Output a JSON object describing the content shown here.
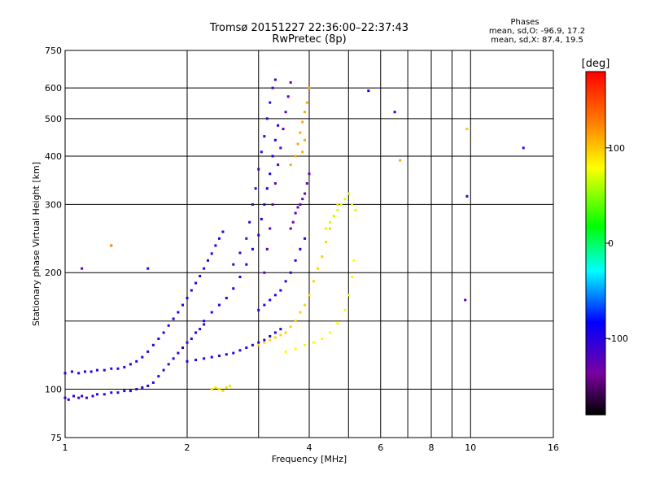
{
  "header": {
    "title_line1": "Tromsø 20151227 22:36:00–22:37:43",
    "title_line2": "RwPretec (8p)",
    "stats_title": "Phases",
    "stats_o": "mean, sd,O: -96.9, 17.2",
    "stats_x": "mean, sd,X:  87.4, 19.5"
  },
  "chart_data": {
    "type": "scatter",
    "xlabel": "Frequency [MHz]",
    "ylabel": "Stationary phase Virtual Height [km]",
    "x_scale": "log",
    "y_scale": "log",
    "xlim": [
      1,
      16
    ],
    "ylim": [
      75,
      750
    ],
    "x_ticks": [
      1,
      2,
      4,
      6,
      8,
      10,
      16
    ],
    "x_minor_ticks": [
      3,
      5,
      7,
      9
    ],
    "y_ticks": [
      75,
      100,
      200,
      300,
      400,
      500,
      600,
      750
    ],
    "y_minor_ticks": [
      150
    ],
    "grid": true,
    "colorbar": {
      "label": "[deg]",
      "range": [
        -180,
        180
      ],
      "ticks": [
        100,
        0,
        -100
      ]
    },
    "series": [
      {
        "phase": -105,
        "points": [
          [
            1.0,
            95
          ],
          [
            1.02,
            94
          ],
          [
            1.05,
            96
          ],
          [
            1.08,
            95
          ],
          [
            1.1,
            96
          ],
          [
            1.13,
            95
          ],
          [
            1.17,
            96
          ],
          [
            1.2,
            97
          ],
          [
            1.25,
            97
          ],
          [
            1.3,
            98
          ],
          [
            1.35,
            98
          ],
          [
            1.4,
            99
          ],
          [
            1.45,
            99
          ],
          [
            1.5,
            100
          ],
          [
            1.55,
            101
          ],
          [
            1.6,
            102
          ],
          [
            1.65,
            104
          ],
          [
            1.7,
            108
          ],
          [
            1.75,
            112
          ],
          [
            1.8,
            116
          ],
          [
            1.85,
            120
          ],
          [
            1.9,
            124
          ],
          [
            1.95,
            128
          ],
          [
            2.0,
            132
          ],
          [
            2.05,
            135
          ],
          [
            2.1,
            140
          ],
          [
            2.15,
            143
          ],
          [
            2.2,
            147
          ]
        ]
      },
      {
        "phase": -100,
        "points": [
          [
            1.0,
            110
          ],
          [
            1.04,
            111
          ],
          [
            1.08,
            110
          ],
          [
            1.12,
            111
          ],
          [
            1.16,
            111
          ],
          [
            1.2,
            112
          ],
          [
            1.25,
            112
          ],
          [
            1.3,
            113
          ],
          [
            1.35,
            113
          ],
          [
            1.4,
            114
          ],
          [
            1.45,
            116
          ],
          [
            1.5,
            118
          ],
          [
            1.55,
            121
          ],
          [
            1.6,
            125
          ],
          [
            1.65,
            130
          ],
          [
            1.7,
            135
          ],
          [
            1.75,
            140
          ],
          [
            1.8,
            146
          ],
          [
            1.85,
            152
          ],
          [
            1.9,
            158
          ],
          [
            1.95,
            165
          ],
          [
            2.0,
            172
          ],
          [
            2.05,
            180
          ],
          [
            2.1,
            188
          ],
          [
            2.15,
            196
          ],
          [
            2.2,
            205
          ],
          [
            2.25,
            215
          ],
          [
            2.3,
            224
          ],
          [
            2.35,
            235
          ],
          [
            2.4,
            245
          ],
          [
            2.45,
            255
          ]
        ]
      },
      {
        "phase": -100,
        "points": [
          [
            2.0,
            118
          ],
          [
            2.1,
            119
          ],
          [
            2.2,
            120
          ],
          [
            2.3,
            121
          ],
          [
            2.4,
            122
          ],
          [
            2.5,
            123
          ],
          [
            2.6,
            124
          ],
          [
            2.7,
            126
          ],
          [
            2.8,
            128
          ],
          [
            2.9,
            130
          ],
          [
            3.0,
            132
          ],
          [
            3.1,
            134
          ],
          [
            3.2,
            137
          ],
          [
            3.3,
            140
          ],
          [
            3.4,
            143
          ]
        ]
      },
      {
        "phase": -95,
        "points": [
          [
            2.2,
            150
          ],
          [
            2.3,
            158
          ],
          [
            2.4,
            165
          ],
          [
            2.5,
            172
          ],
          [
            2.6,
            182
          ],
          [
            2.7,
            195
          ],
          [
            2.8,
            210
          ],
          [
            2.9,
            230
          ],
          [
            3.0,
            250
          ],
          [
            3.05,
            275
          ],
          [
            3.1,
            300
          ],
          [
            3.15,
            330
          ],
          [
            3.2,
            360
          ],
          [
            3.25,
            400
          ],
          [
            3.3,
            440
          ],
          [
            3.35,
            480
          ]
        ]
      },
      {
        "phase": -110,
        "points": [
          [
            2.6,
            210
          ],
          [
            2.7,
            225
          ],
          [
            2.8,
            245
          ],
          [
            2.85,
            270
          ],
          [
            2.9,
            300
          ],
          [
            2.95,
            330
          ],
          [
            3.0,
            370
          ],
          [
            3.05,
            410
          ],
          [
            3.1,
            450
          ],
          [
            3.15,
            500
          ],
          [
            3.2,
            550
          ],
          [
            3.25,
            600
          ],
          [
            3.3,
            630
          ]
        ]
      },
      {
        "phase": -125,
        "points": [
          [
            3.1,
            200
          ],
          [
            3.15,
            230
          ],
          [
            3.2,
            260
          ],
          [
            3.25,
            300
          ],
          [
            3.3,
            340
          ],
          [
            3.35,
            380
          ],
          [
            3.4,
            420
          ],
          [
            3.45,
            470
          ],
          [
            3.5,
            520
          ],
          [
            3.55,
            570
          ],
          [
            3.6,
            620
          ]
        ]
      },
      {
        "phase": -130,
        "points": [
          [
            3.6,
            260
          ],
          [
            3.65,
            270
          ],
          [
            3.7,
            285
          ],
          [
            3.75,
            295
          ],
          [
            3.8,
            300
          ],
          [
            3.85,
            310
          ],
          [
            3.9,
            320
          ],
          [
            3.95,
            340
          ],
          [
            4.0,
            360
          ]
        ]
      },
      {
        "phase": -100,
        "points": [
          [
            3.0,
            160
          ],
          [
            3.1,
            165
          ],
          [
            3.2,
            170
          ],
          [
            3.3,
            175
          ],
          [
            3.4,
            180
          ],
          [
            3.5,
            190
          ],
          [
            3.6,
            200
          ],
          [
            3.7,
            215
          ],
          [
            3.8,
            230
          ],
          [
            3.9,
            245
          ]
        ]
      },
      {
        "phase": 95,
        "points": [
          [
            3.0,
            130
          ],
          [
            3.1,
            132
          ],
          [
            3.2,
            134
          ],
          [
            3.3,
            136
          ],
          [
            3.4,
            138
          ],
          [
            3.5,
            140
          ],
          [
            3.6,
            145
          ],
          [
            3.7,
            150
          ],
          [
            3.8,
            158
          ],
          [
            3.9,
            165
          ],
          [
            4.0,
            175
          ],
          [
            4.1,
            190
          ],
          [
            4.2,
            205
          ],
          [
            4.3,
            220
          ],
          [
            4.4,
            240
          ],
          [
            4.5,
            260
          ],
          [
            4.6,
            280
          ],
          [
            4.7,
            300
          ]
        ]
      },
      {
        "phase": 80,
        "points": [
          [
            3.5,
            125
          ],
          [
            3.7,
            127
          ],
          [
            3.9,
            130
          ],
          [
            4.1,
            132
          ],
          [
            4.3,
            135
          ],
          [
            4.5,
            140
          ],
          [
            4.7,
            148
          ],
          [
            4.9,
            160
          ],
          [
            5.0,
            175
          ],
          [
            5.1,
            195
          ],
          [
            5.15,
            215
          ]
        ]
      },
      {
        "phase": 110,
        "points": [
          [
            3.6,
            380
          ],
          [
            3.7,
            400
          ],
          [
            3.75,
            430
          ],
          [
            3.8,
            460
          ],
          [
            3.85,
            490
          ],
          [
            3.9,
            520
          ],
          [
            3.95,
            550
          ],
          [
            4.0,
            600
          ],
          [
            3.85,
            410
          ],
          [
            3.9,
            440
          ]
        ]
      },
      {
        "phase": 70,
        "points": [
          [
            4.4,
            260
          ],
          [
            4.5,
            270
          ],
          [
            4.6,
            280
          ],
          [
            4.7,
            290
          ],
          [
            4.8,
            300
          ],
          [
            4.9,
            310
          ],
          [
            5.0,
            320
          ],
          [
            5.1,
            300
          ],
          [
            5.2,
            290
          ]
        ]
      },
      {
        "phase": 90,
        "points": [
          [
            2.3,
            100
          ],
          [
            2.35,
            101
          ],
          [
            2.4,
            100
          ],
          [
            2.45,
            99
          ],
          [
            2.5,
            101
          ],
          [
            2.55,
            102
          ]
        ]
      }
    ],
    "outliers": [
      [
        1.1,
        205,
        -120
      ],
      [
        1.3,
        235,
        130
      ],
      [
        1.6,
        205,
        -100
      ],
      [
        5.6,
        590,
        -90
      ],
      [
        6.5,
        520,
        -100
      ],
      [
        6.7,
        390,
        110
      ],
      [
        9.8,
        470,
        100
      ],
      [
        9.8,
        315,
        -110
      ],
      [
        9.7,
        170,
        -120
      ],
      [
        13.5,
        420,
        -110
      ]
    ]
  }
}
